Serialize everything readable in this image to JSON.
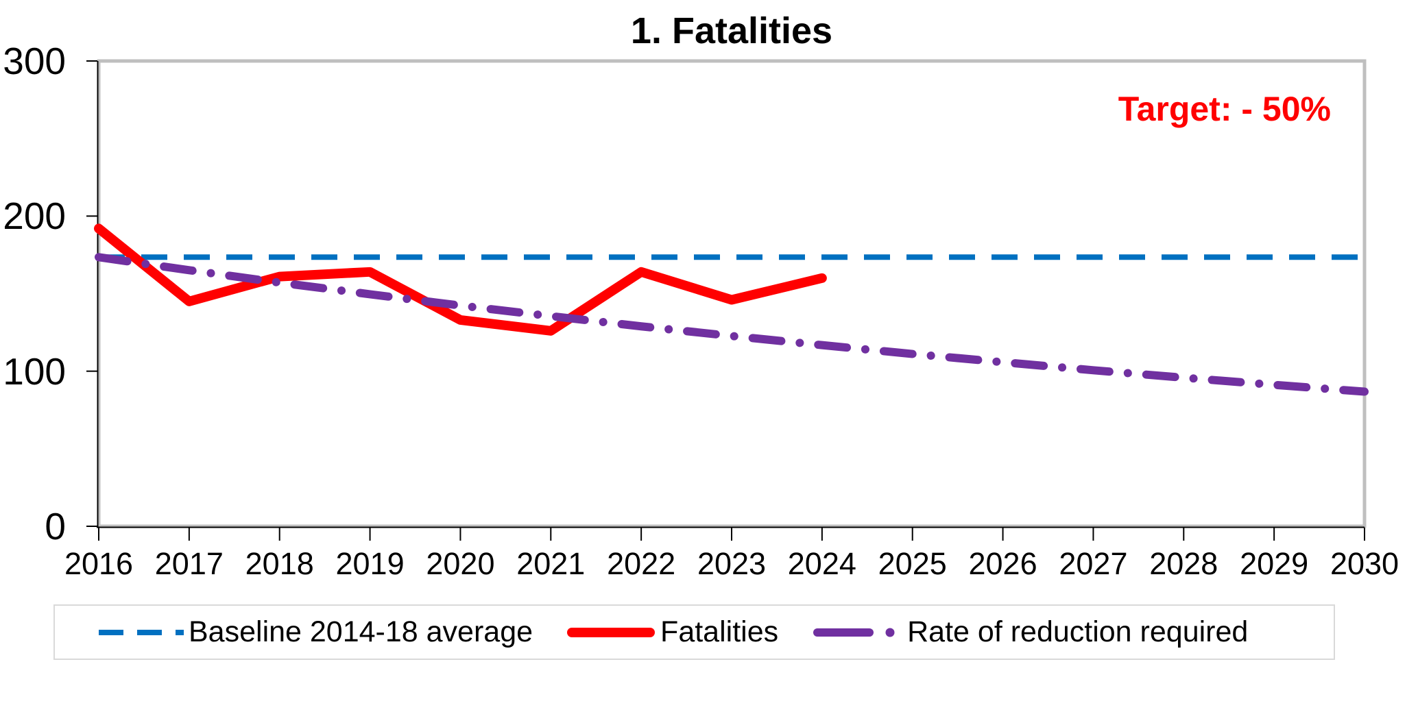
{
  "title": "1. Fatalities",
  "target_label": "Target: - 50%",
  "colors": {
    "fatalities": "#ff0000",
    "baseline": "#0070c0",
    "required": "#7030a0",
    "target_text": "#ff0000",
    "plot_frame": "#bfbfbf",
    "axis": "#000000",
    "legend_border": "#d9d9d9"
  },
  "legend": {
    "baseline_label": "Baseline 2014-18 average",
    "fatalities_label": "Fatalities",
    "required_label": "Rate of reduction required"
  },
  "chart_data": {
    "type": "line",
    "title": "1. Fatalities",
    "annotation": "Target: - 50%",
    "xlabel": "",
    "ylabel": "",
    "xlim": [
      2016,
      2030
    ],
    "ylim": [
      0,
      300
    ],
    "y_ticks": [
      0,
      100,
      200,
      300
    ],
    "x_ticks": [
      2016,
      2017,
      2018,
      2019,
      2020,
      2021,
      2022,
      2023,
      2024,
      2025,
      2026,
      2027,
      2028,
      2029,
      2030
    ],
    "grid": false,
    "legend_position": "bottom",
    "series": [
      {
        "name": "Baseline 2014-18 average",
        "style": "dashed",
        "color": "#0070c0",
        "x": [
          2016,
          2030
        ],
        "values": [
          173.5,
          173.5
        ]
      },
      {
        "name": "Fatalities",
        "style": "solid",
        "color": "#ff0000",
        "x": [
          2016,
          2017,
          2018,
          2019,
          2020,
          2021,
          2022,
          2023,
          2024
        ],
        "values": [
          192,
          145,
          161,
          164,
          133,
          126,
          164,
          146,
          160
        ]
      },
      {
        "name": "Rate of reduction required",
        "style": "dashdot",
        "color": "#7030a0",
        "x": [
          2016,
          2017,
          2018,
          2019,
          2020,
          2021,
          2022,
          2023,
          2024,
          2025,
          2026,
          2027,
          2028,
          2029,
          2030
        ],
        "values": [
          173.5,
          165.1,
          157.1,
          149.6,
          142.3,
          135.5,
          128.9,
          122.7,
          116.8,
          111.1,
          105.8,
          100.6,
          95.8,
          91.2,
          86.8
        ]
      }
    ]
  }
}
